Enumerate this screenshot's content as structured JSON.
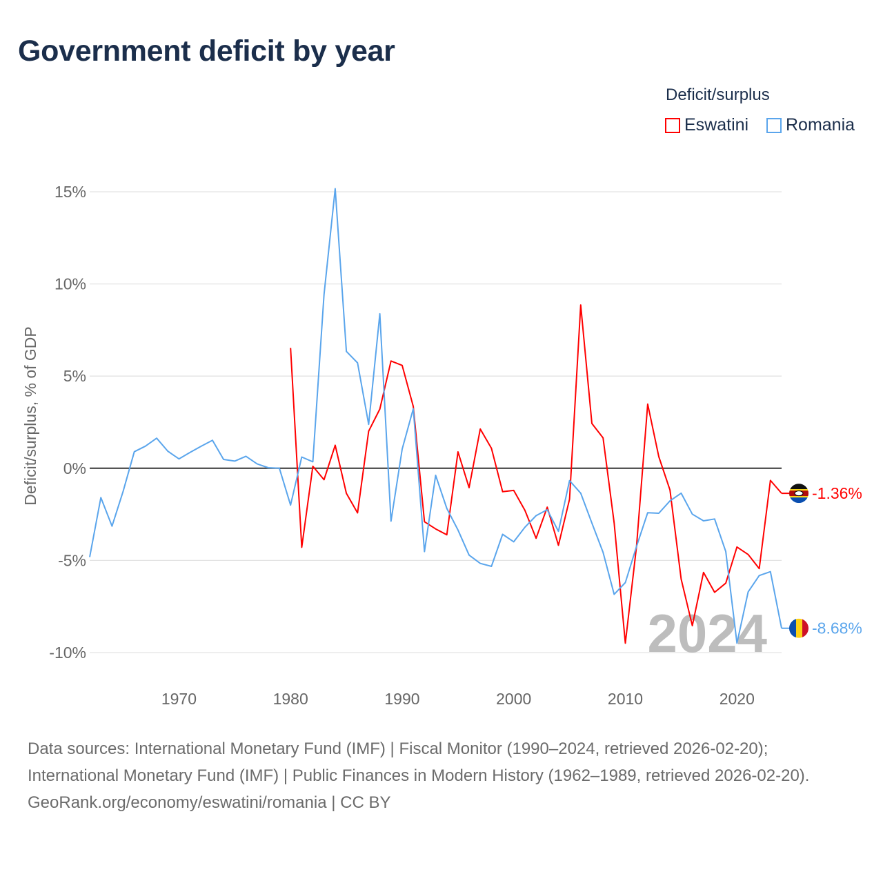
{
  "title": "Government deficit by year",
  "legend": {
    "title": "Deficit/surplus",
    "items": [
      {
        "name": "Eswatini",
        "color": "#ff0000"
      },
      {
        "name": "Romania",
        "color": "#5aa5ec"
      }
    ]
  },
  "watermark_year": "2024",
  "footer": {
    "sources": "Data sources: International Monetary Fund (IMF) | Fiscal Monitor (1990–2024, retrieved 2026-02-20); International Monetary Fund (IMF) | Public Finances in Modern History (1962–1989, retrieved 2026-02-20).",
    "credit": "GeoRank.org/economy/eswatini/romania | CC BY"
  },
  "chart_data": {
    "type": "line",
    "title": "Government deficit by year",
    "xlabel": "",
    "ylabel": "Deficit/surplus, % of GDP",
    "xlim": [
      1962,
      2024
    ],
    "ylim": [
      -10,
      15
    ],
    "xticks": [
      1970,
      1980,
      1990,
      2000,
      2010,
      2020
    ],
    "yticks": [
      {
        "v": 15,
        "label": "15%"
      },
      {
        "v": 10,
        "label": "10%"
      },
      {
        "v": 5,
        "label": "5%"
      },
      {
        "v": 0,
        "label": "0%"
      },
      {
        "v": -5,
        "label": "-5%"
      },
      {
        "v": -10,
        "label": "-10%"
      }
    ],
    "grid": true,
    "legend_position": "top-right",
    "series": [
      {
        "name": "Eswatini",
        "color": "#ff0000",
        "end_label": "-1.36%",
        "start_year": 1980,
        "values": [
          6.53,
          -4.29,
          0.11,
          -0.62,
          1.25,
          -1.36,
          -2.42,
          2.01,
          3.21,
          5.82,
          5.58,
          3.35,
          -2.9,
          -3.29,
          -3.61,
          0.89,
          -1.05,
          2.13,
          1.08,
          -1.27,
          -1.2,
          -2.28,
          -3.8,
          -2.11,
          -4.18,
          -1.68,
          8.86,
          2.43,
          1.65,
          -2.97,
          -9.49,
          -4.24,
          3.48,
          0.63,
          -1.18,
          -6.01,
          -8.54,
          -5.65,
          -6.73,
          -6.23,
          -4.27,
          -4.68,
          -5.44,
          -0.66,
          -1.36
        ]
      },
      {
        "name": "Romania",
        "color": "#5aa5ec",
        "end_label": "-8.68%",
        "start_year": 1962,
        "values": [
          -4.82,
          -1.59,
          -3.14,
          -1.25,
          0.9,
          1.2,
          1.63,
          0.93,
          0.51,
          0.86,
          1.2,
          1.52,
          0.48,
          0.39,
          0.65,
          0.24,
          0.03,
          0,
          -2.0,
          0.61,
          0.35,
          9.42,
          15.17,
          6.34,
          5.72,
          2.38,
          8.38,
          -2.87,
          1.04,
          3.23,
          -4.52,
          -0.38,
          -2.18,
          -3.35,
          -4.71,
          -5.16,
          -5.32,
          -3.58,
          -3.99,
          -3.2,
          -2.57,
          -2.25,
          -3.42,
          -0.67,
          -1.35,
          -2.97,
          -4.56,
          -6.84,
          -6.2,
          -4.24,
          -2.41,
          -2.44,
          -1.77,
          -1.35,
          -2.49,
          -2.85,
          -2.75,
          -4.52,
          -9.49,
          -6.71,
          -5.82,
          -5.61,
          -8.68
        ]
      }
    ]
  }
}
